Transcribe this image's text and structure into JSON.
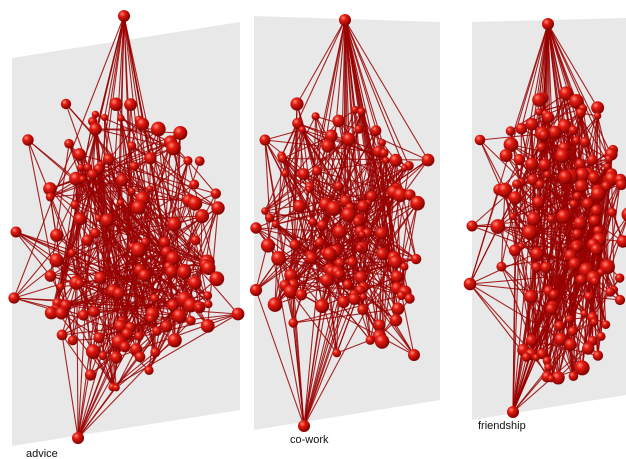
{
  "figure": {
    "layers": [
      {
        "key": "advice",
        "label": "advice"
      },
      {
        "key": "cowork",
        "label": "co-work"
      },
      {
        "key": "friendship",
        "label": "friendship"
      }
    ]
  },
  "style": {
    "plane_fill": "#e8e8e8",
    "node_color": "#cc0000",
    "node_highlight": "#ff6a5a",
    "node_shadow": "#7a0000",
    "edge_color": "#990000"
  }
}
